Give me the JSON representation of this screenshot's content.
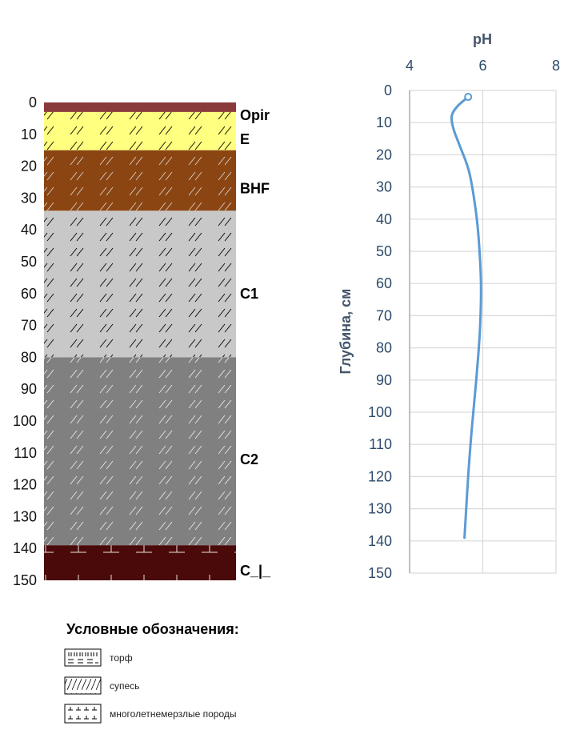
{
  "profile": {
    "depth_ticks": [
      "0",
      "10",
      "20",
      "30",
      "40",
      "50",
      "60",
      "70",
      "80",
      "90",
      "100",
      "110",
      "120",
      "130",
      "140",
      "150"
    ],
    "depth_max": 150,
    "layers": [
      {
        "horizon": "Opir",
        "from": 0,
        "to": 3,
        "color": "#8b3a3a",
        "pattern": "none"
      },
      {
        "horizon": "E",
        "from": 3,
        "to": 15,
        "color": "#ffff80",
        "pattern": "sandy-loam"
      },
      {
        "horizon": "BHF",
        "from": 15,
        "to": 34,
        "color": "#8b4513",
        "pattern": "sandy-loam"
      },
      {
        "horizon": "C1",
        "from": 34,
        "to": 80,
        "color": "#c8c8c8",
        "pattern": "sandy-loam"
      },
      {
        "horizon": "C2",
        "from": 80,
        "to": 139,
        "color": "#808080",
        "pattern": "sandy-loam"
      },
      {
        "horizon": "C_|_",
        "from": 139,
        "to": 150,
        "color": "#4a0a0a",
        "pattern": "permafrost"
      }
    ],
    "horizon_labels": [
      {
        "text": "Opir",
        "depth": 4
      },
      {
        "text": "E",
        "depth": 11.5
      },
      {
        "text": "BHF",
        "depth": 27
      },
      {
        "text": "C1",
        "depth": 60
      },
      {
        "text": "C2",
        "depth": 112
      },
      {
        "text": "C_|_",
        "depth": 147
      }
    ]
  },
  "legend": {
    "title": "Условные обозначения:",
    "items": [
      {
        "label": "торф",
        "icon": "peat-icon"
      },
      {
        "label": "супесь",
        "icon": "sandy-loam-icon"
      },
      {
        "label": "многолетнемерзлые породы",
        "icon": "permafrost-icon"
      }
    ]
  },
  "chart_data": {
    "type": "line",
    "title": "",
    "xlabel": "pH",
    "ylabel": "Глубина, см",
    "xlim": [
      4,
      8
    ],
    "ylim": [
      0,
      150
    ],
    "y_inverted": true,
    "x_ticks": [
      "4",
      "6",
      "8"
    ],
    "y_ticks": [
      "0",
      "10",
      "20",
      "30",
      "40",
      "50",
      "60",
      "70",
      "80",
      "90",
      "100",
      "110",
      "120",
      "130",
      "140",
      "150"
    ],
    "grid": true,
    "series": [
      {
        "color": "#5b9bd5",
        "points": [
          {
            "x": 5.6,
            "y": 2
          },
          {
            "x": 5.3,
            "y": 5
          },
          {
            "x": 5.15,
            "y": 8
          },
          {
            "x": 5.2,
            "y": 12
          },
          {
            "x": 5.4,
            "y": 18
          },
          {
            "x": 5.62,
            "y": 25
          },
          {
            "x": 5.78,
            "y": 35
          },
          {
            "x": 5.88,
            "y": 45
          },
          {
            "x": 5.95,
            "y": 60
          },
          {
            "x": 5.92,
            "y": 75
          },
          {
            "x": 5.82,
            "y": 90
          },
          {
            "x": 5.7,
            "y": 105
          },
          {
            "x": 5.6,
            "y": 120
          },
          {
            "x": 5.5,
            "y": 139
          }
        ]
      }
    ]
  }
}
